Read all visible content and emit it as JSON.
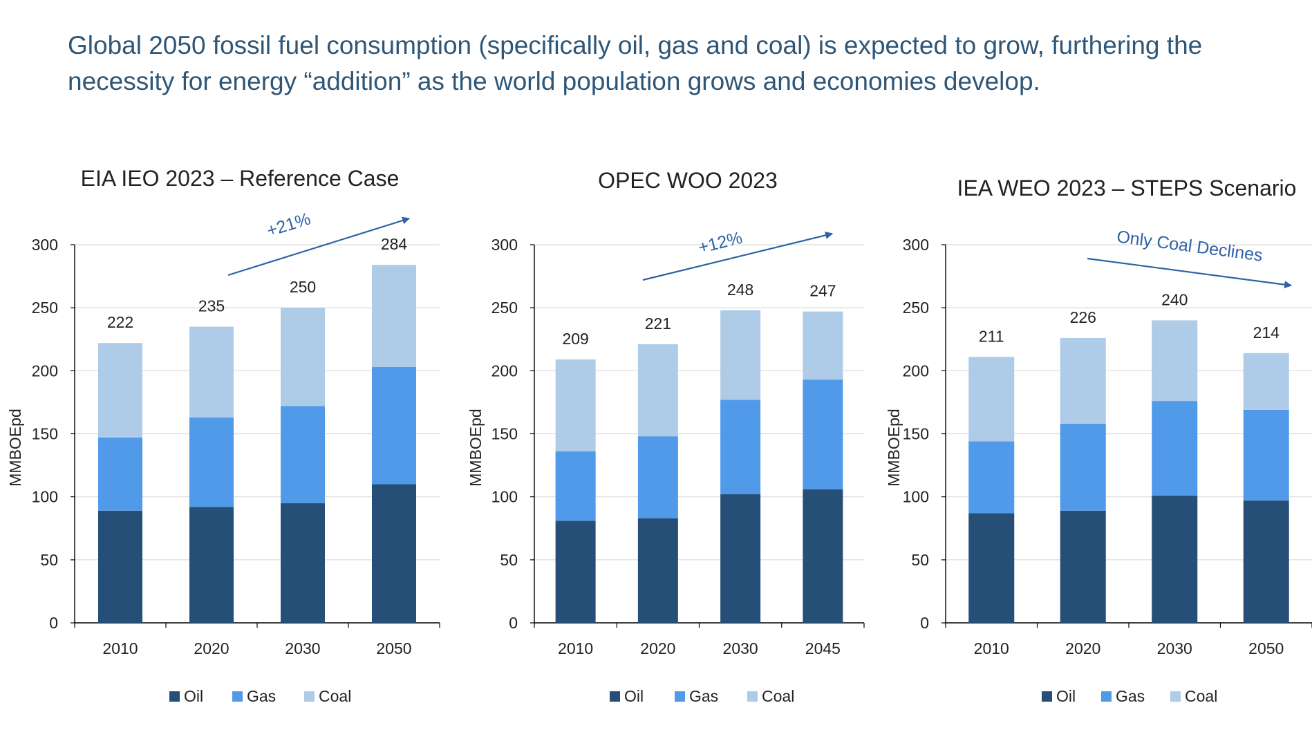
{
  "headline": "Global 2050 fossil fuel consumption (specifically oil, gas and coal) is expected to grow, furthering the necessity for energy “addition” as the world population grows and economies develop.",
  "colors": {
    "oil": "#264f78",
    "gas": "#5199e9",
    "coal": "#aecbe8",
    "annotation": "#2e62a6",
    "text": "#222222"
  },
  "chart_data": [
    {
      "type": "bar",
      "stacked": true,
      "title": "EIA IEO 2023 – Reference Case",
      "ylabel": "MMBOEpd",
      "xlabel": "",
      "ylim": [
        0,
        300
      ],
      "yticks": [
        0,
        50,
        100,
        150,
        200,
        250,
        300
      ],
      "grid": true,
      "legend": "bottom",
      "categories": [
        "2010",
        "2020",
        "2030",
        "2050"
      ],
      "series": [
        {
          "name": "Oil",
          "values": [
            89,
            92,
            95,
            110
          ]
        },
        {
          "name": "Gas",
          "values": [
            58,
            71,
            77,
            93
          ]
        },
        {
          "name": "Coal",
          "values": [
            75,
            72,
            78,
            81
          ]
        }
      ],
      "totals": [
        "222",
        "235",
        "250",
        "284"
      ],
      "annotation": "+21%"
    },
    {
      "type": "bar",
      "stacked": true,
      "title": "OPEC WOO 2023",
      "ylabel": "MMBOEpd",
      "xlabel": "",
      "ylim": [
        0,
        300
      ],
      "yticks": [
        0,
        50,
        100,
        150,
        200,
        250,
        300
      ],
      "grid": true,
      "legend": "bottom",
      "categories": [
        "2010",
        "2020",
        "2030",
        "2045"
      ],
      "series": [
        {
          "name": "Oil",
          "values": [
            81,
            83,
            102,
            106
          ]
        },
        {
          "name": "Gas",
          "values": [
            55,
            65,
            75,
            87
          ]
        },
        {
          "name": "Coal",
          "values": [
            73,
            73,
            71,
            54
          ]
        }
      ],
      "totals": [
        "209",
        "221",
        "248",
        "247"
      ],
      "annotation": "+12%"
    },
    {
      "type": "bar",
      "stacked": true,
      "title": "IEA WEO 2023 – STEPS Scenario",
      "ylabel": "MMBOEpd",
      "xlabel": "",
      "ylim": [
        0,
        300
      ],
      "yticks": [
        0,
        50,
        100,
        150,
        200,
        250,
        300
      ],
      "grid": true,
      "legend": "bottom",
      "categories": [
        "2010",
        "2020",
        "2030",
        "2050"
      ],
      "series": [
        {
          "name": "Oil",
          "values": [
            87,
            89,
            101,
            97
          ]
        },
        {
          "name": "Gas",
          "values": [
            57,
            69,
            75,
            72
          ]
        },
        {
          "name": "Coal",
          "values": [
            67,
            68,
            64,
            45
          ]
        }
      ],
      "totals": [
        "211",
        "226",
        "240",
        "214"
      ],
      "annotation": "Only Coal Declines"
    }
  ]
}
